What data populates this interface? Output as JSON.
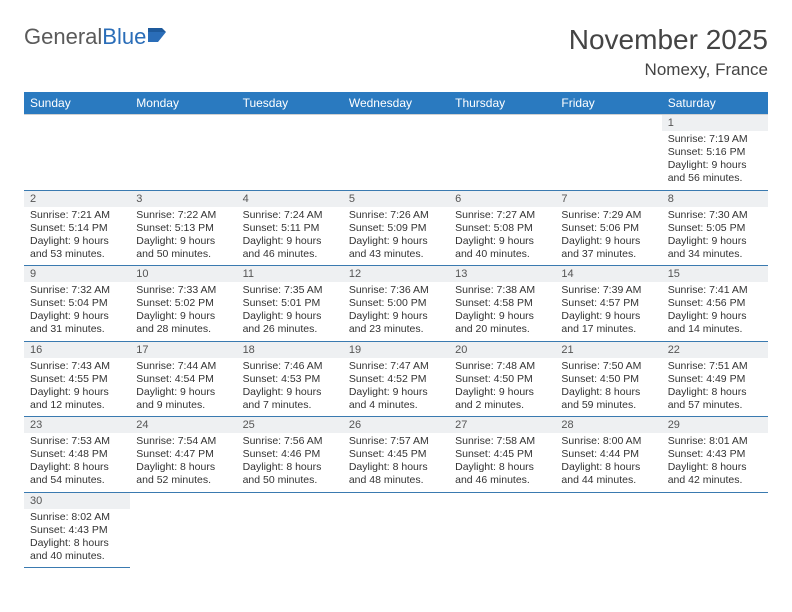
{
  "logo": {
    "part1": "General",
    "part2": "Blue"
  },
  "title": "November 2025",
  "location": "Nomexy, France",
  "colors": {
    "header_bg": "#2a7ac0",
    "header_fg": "#ffffff",
    "row_sep": "#3a7ab0",
    "alt_bg": "#eef0f2",
    "text": "#333333",
    "title_color": "#444444"
  },
  "dayNames": [
    "Sunday",
    "Monday",
    "Tuesday",
    "Wednesday",
    "Thursday",
    "Friday",
    "Saturday"
  ],
  "weeks": [
    [
      null,
      null,
      null,
      null,
      null,
      null,
      {
        "n": "1",
        "sr": "Sunrise: 7:19 AM",
        "ss": "Sunset: 5:16 PM",
        "d1": "Daylight: 9 hours",
        "d2": "and 56 minutes."
      }
    ],
    [
      {
        "n": "2",
        "sr": "Sunrise: 7:21 AM",
        "ss": "Sunset: 5:14 PM",
        "d1": "Daylight: 9 hours",
        "d2": "and 53 minutes."
      },
      {
        "n": "3",
        "sr": "Sunrise: 7:22 AM",
        "ss": "Sunset: 5:13 PM",
        "d1": "Daylight: 9 hours",
        "d2": "and 50 minutes."
      },
      {
        "n": "4",
        "sr": "Sunrise: 7:24 AM",
        "ss": "Sunset: 5:11 PM",
        "d1": "Daylight: 9 hours",
        "d2": "and 46 minutes."
      },
      {
        "n": "5",
        "sr": "Sunrise: 7:26 AM",
        "ss": "Sunset: 5:09 PM",
        "d1": "Daylight: 9 hours",
        "d2": "and 43 minutes."
      },
      {
        "n": "6",
        "sr": "Sunrise: 7:27 AM",
        "ss": "Sunset: 5:08 PM",
        "d1": "Daylight: 9 hours",
        "d2": "and 40 minutes."
      },
      {
        "n": "7",
        "sr": "Sunrise: 7:29 AM",
        "ss": "Sunset: 5:06 PM",
        "d1": "Daylight: 9 hours",
        "d2": "and 37 minutes."
      },
      {
        "n": "8",
        "sr": "Sunrise: 7:30 AM",
        "ss": "Sunset: 5:05 PM",
        "d1": "Daylight: 9 hours",
        "d2": "and 34 minutes."
      }
    ],
    [
      {
        "n": "9",
        "sr": "Sunrise: 7:32 AM",
        "ss": "Sunset: 5:04 PM",
        "d1": "Daylight: 9 hours",
        "d2": "and 31 minutes."
      },
      {
        "n": "10",
        "sr": "Sunrise: 7:33 AM",
        "ss": "Sunset: 5:02 PM",
        "d1": "Daylight: 9 hours",
        "d2": "and 28 minutes."
      },
      {
        "n": "11",
        "sr": "Sunrise: 7:35 AM",
        "ss": "Sunset: 5:01 PM",
        "d1": "Daylight: 9 hours",
        "d2": "and 26 minutes."
      },
      {
        "n": "12",
        "sr": "Sunrise: 7:36 AM",
        "ss": "Sunset: 5:00 PM",
        "d1": "Daylight: 9 hours",
        "d2": "and 23 minutes."
      },
      {
        "n": "13",
        "sr": "Sunrise: 7:38 AM",
        "ss": "Sunset: 4:58 PM",
        "d1": "Daylight: 9 hours",
        "d2": "and 20 minutes."
      },
      {
        "n": "14",
        "sr": "Sunrise: 7:39 AM",
        "ss": "Sunset: 4:57 PM",
        "d1": "Daylight: 9 hours",
        "d2": "and 17 minutes."
      },
      {
        "n": "15",
        "sr": "Sunrise: 7:41 AM",
        "ss": "Sunset: 4:56 PM",
        "d1": "Daylight: 9 hours",
        "d2": "and 14 minutes."
      }
    ],
    [
      {
        "n": "16",
        "sr": "Sunrise: 7:43 AM",
        "ss": "Sunset: 4:55 PM",
        "d1": "Daylight: 9 hours",
        "d2": "and 12 minutes."
      },
      {
        "n": "17",
        "sr": "Sunrise: 7:44 AM",
        "ss": "Sunset: 4:54 PM",
        "d1": "Daylight: 9 hours",
        "d2": "and 9 minutes."
      },
      {
        "n": "18",
        "sr": "Sunrise: 7:46 AM",
        "ss": "Sunset: 4:53 PM",
        "d1": "Daylight: 9 hours",
        "d2": "and 7 minutes."
      },
      {
        "n": "19",
        "sr": "Sunrise: 7:47 AM",
        "ss": "Sunset: 4:52 PM",
        "d1": "Daylight: 9 hours",
        "d2": "and 4 minutes."
      },
      {
        "n": "20",
        "sr": "Sunrise: 7:48 AM",
        "ss": "Sunset: 4:50 PM",
        "d1": "Daylight: 9 hours",
        "d2": "and 2 minutes."
      },
      {
        "n": "21",
        "sr": "Sunrise: 7:50 AM",
        "ss": "Sunset: 4:50 PM",
        "d1": "Daylight: 8 hours",
        "d2": "and 59 minutes."
      },
      {
        "n": "22",
        "sr": "Sunrise: 7:51 AM",
        "ss": "Sunset: 4:49 PM",
        "d1": "Daylight: 8 hours",
        "d2": "and 57 minutes."
      }
    ],
    [
      {
        "n": "23",
        "sr": "Sunrise: 7:53 AM",
        "ss": "Sunset: 4:48 PM",
        "d1": "Daylight: 8 hours",
        "d2": "and 54 minutes."
      },
      {
        "n": "24",
        "sr": "Sunrise: 7:54 AM",
        "ss": "Sunset: 4:47 PM",
        "d1": "Daylight: 8 hours",
        "d2": "and 52 minutes."
      },
      {
        "n": "25",
        "sr": "Sunrise: 7:56 AM",
        "ss": "Sunset: 4:46 PM",
        "d1": "Daylight: 8 hours",
        "d2": "and 50 minutes."
      },
      {
        "n": "26",
        "sr": "Sunrise: 7:57 AM",
        "ss": "Sunset: 4:45 PM",
        "d1": "Daylight: 8 hours",
        "d2": "and 48 minutes."
      },
      {
        "n": "27",
        "sr": "Sunrise: 7:58 AM",
        "ss": "Sunset: 4:45 PM",
        "d1": "Daylight: 8 hours",
        "d2": "and 46 minutes."
      },
      {
        "n": "28",
        "sr": "Sunrise: 8:00 AM",
        "ss": "Sunset: 4:44 PM",
        "d1": "Daylight: 8 hours",
        "d2": "and 44 minutes."
      },
      {
        "n": "29",
        "sr": "Sunrise: 8:01 AM",
        "ss": "Sunset: 4:43 PM",
        "d1": "Daylight: 8 hours",
        "d2": "and 42 minutes."
      }
    ],
    [
      {
        "n": "30",
        "sr": "Sunrise: 8:02 AM",
        "ss": "Sunset: 4:43 PM",
        "d1": "Daylight: 8 hours",
        "d2": "and 40 minutes."
      },
      null,
      null,
      null,
      null,
      null,
      null
    ]
  ]
}
